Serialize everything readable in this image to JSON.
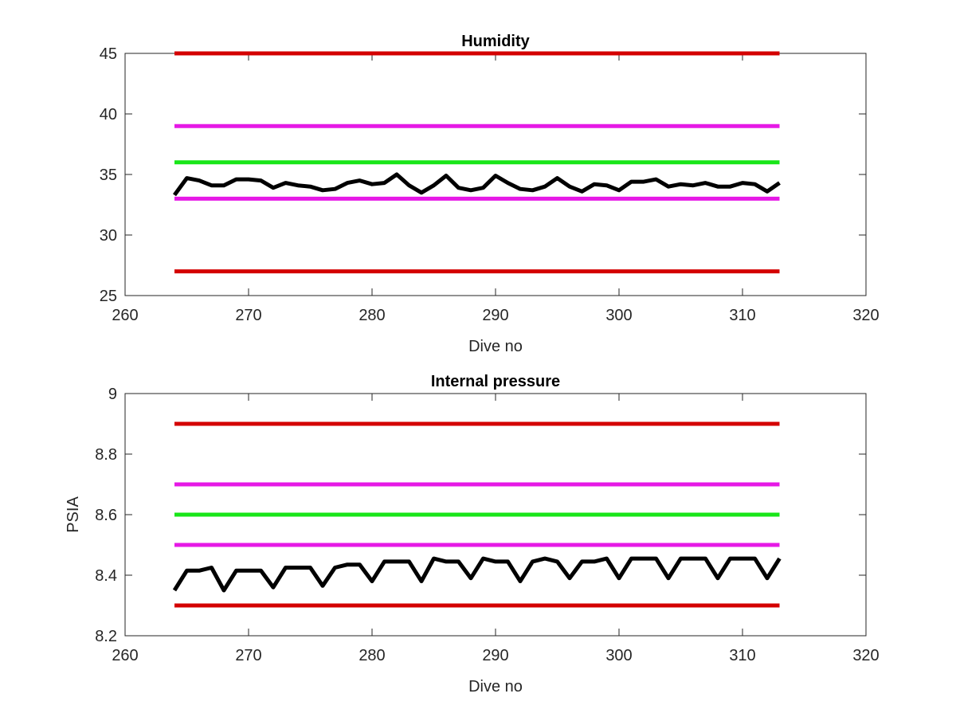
{
  "chart_data": [
    {
      "type": "line",
      "title": "Humidity",
      "xlabel": "Dive no",
      "ylabel": "",
      "xlim": [
        260,
        320
      ],
      "ylim": [
        25,
        45
      ],
      "xticks": [
        "260",
        "270",
        "280",
        "290",
        "300",
        "310",
        "320"
      ],
      "yticks": [
        "25",
        "30",
        "35",
        "40",
        "45"
      ],
      "grid": false,
      "threshold_lines": [
        {
          "y": 45,
          "x": [
            264,
            313
          ],
          "color": "#d40000"
        },
        {
          "y": 39,
          "x": [
            264,
            313
          ],
          "color": "#e619e6"
        },
        {
          "y": 36,
          "x": [
            264,
            313
          ],
          "color": "#19e619"
        },
        {
          "y": 33,
          "x": [
            264,
            313
          ],
          "color": "#e619e6"
        },
        {
          "y": 27,
          "x": [
            264,
            313
          ],
          "color": "#d40000"
        }
      ],
      "series": [
        {
          "color": "#000000",
          "x": [
            264,
            265,
            266,
            267,
            268,
            269,
            270,
            271,
            272,
            273,
            274,
            275,
            276,
            277,
            278,
            279,
            280,
            281,
            282,
            283,
            284,
            285,
            286,
            287,
            288,
            289,
            290,
            291,
            292,
            293,
            294,
            295,
            296,
            297,
            298,
            299,
            300,
            301,
            302,
            303,
            304,
            305,
            306,
            307,
            308,
            309,
            310,
            311,
            312,
            313
          ],
          "y": [
            33.3,
            34.7,
            34.5,
            34.1,
            34.1,
            34.6,
            34.6,
            34.5,
            33.9,
            34.3,
            34.1,
            34.0,
            33.7,
            33.8,
            34.3,
            34.5,
            34.2,
            34.3,
            35.0,
            34.1,
            33.5,
            34.1,
            34.9,
            33.9,
            33.7,
            33.9,
            34.9,
            34.3,
            33.8,
            33.7,
            34.0,
            34.7,
            34.0,
            33.6,
            34.2,
            34.1,
            33.7,
            34.4,
            34.4,
            34.6,
            34.0,
            34.2,
            34.1,
            34.3,
            34.0,
            34.0,
            34.3,
            34.2,
            33.6,
            34.3
          ]
        }
      ]
    },
    {
      "type": "line",
      "title": "Internal pressure",
      "xlabel": "Dive no",
      "ylabel": "PSIA",
      "xlim": [
        260,
        320
      ],
      "ylim": [
        8.2,
        9.0
      ],
      "xticks": [
        "260",
        "270",
        "280",
        "290",
        "300",
        "310",
        "320"
      ],
      "yticks": [
        "8.2",
        "8.4",
        "8.6",
        "8.8",
        "9"
      ],
      "grid": false,
      "threshold_lines": [
        {
          "y": 8.9,
          "x": [
            264,
            313
          ],
          "color": "#d40000"
        },
        {
          "y": 8.7,
          "x": [
            264,
            313
          ],
          "color": "#e619e6"
        },
        {
          "y": 8.6,
          "x": [
            264,
            313
          ],
          "color": "#19e619"
        },
        {
          "y": 8.5,
          "x": [
            264,
            313
          ],
          "color": "#e619e6"
        },
        {
          "y": 8.3,
          "x": [
            264,
            313
          ],
          "color": "#d40000"
        }
      ],
      "series": [
        {
          "color": "#000000",
          "x": [
            264,
            265,
            266,
            267,
            268,
            269,
            270,
            271,
            272,
            273,
            274,
            275,
            276,
            277,
            278,
            279,
            280,
            281,
            282,
            283,
            284,
            285,
            286,
            287,
            288,
            289,
            290,
            291,
            292,
            293,
            294,
            295,
            296,
            297,
            298,
            299,
            300,
            301,
            302,
            303,
            304,
            305,
            306,
            307,
            308,
            309,
            310,
            311,
            312,
            313
          ],
          "y": [
            8.35,
            8.415,
            8.415,
            8.425,
            8.35,
            8.415,
            8.415,
            8.415,
            8.36,
            8.425,
            8.425,
            8.425,
            8.365,
            8.425,
            8.435,
            8.435,
            8.38,
            8.445,
            8.445,
            8.445,
            8.38,
            8.455,
            8.445,
            8.445,
            8.39,
            8.455,
            8.445,
            8.445,
            8.38,
            8.445,
            8.455,
            8.445,
            8.39,
            8.445,
            8.445,
            8.455,
            8.39,
            8.455,
            8.455,
            8.455,
            8.39,
            8.455,
            8.455,
            8.455,
            8.39,
            8.455,
            8.455,
            8.455,
            8.39,
            8.455
          ]
        }
      ]
    }
  ]
}
